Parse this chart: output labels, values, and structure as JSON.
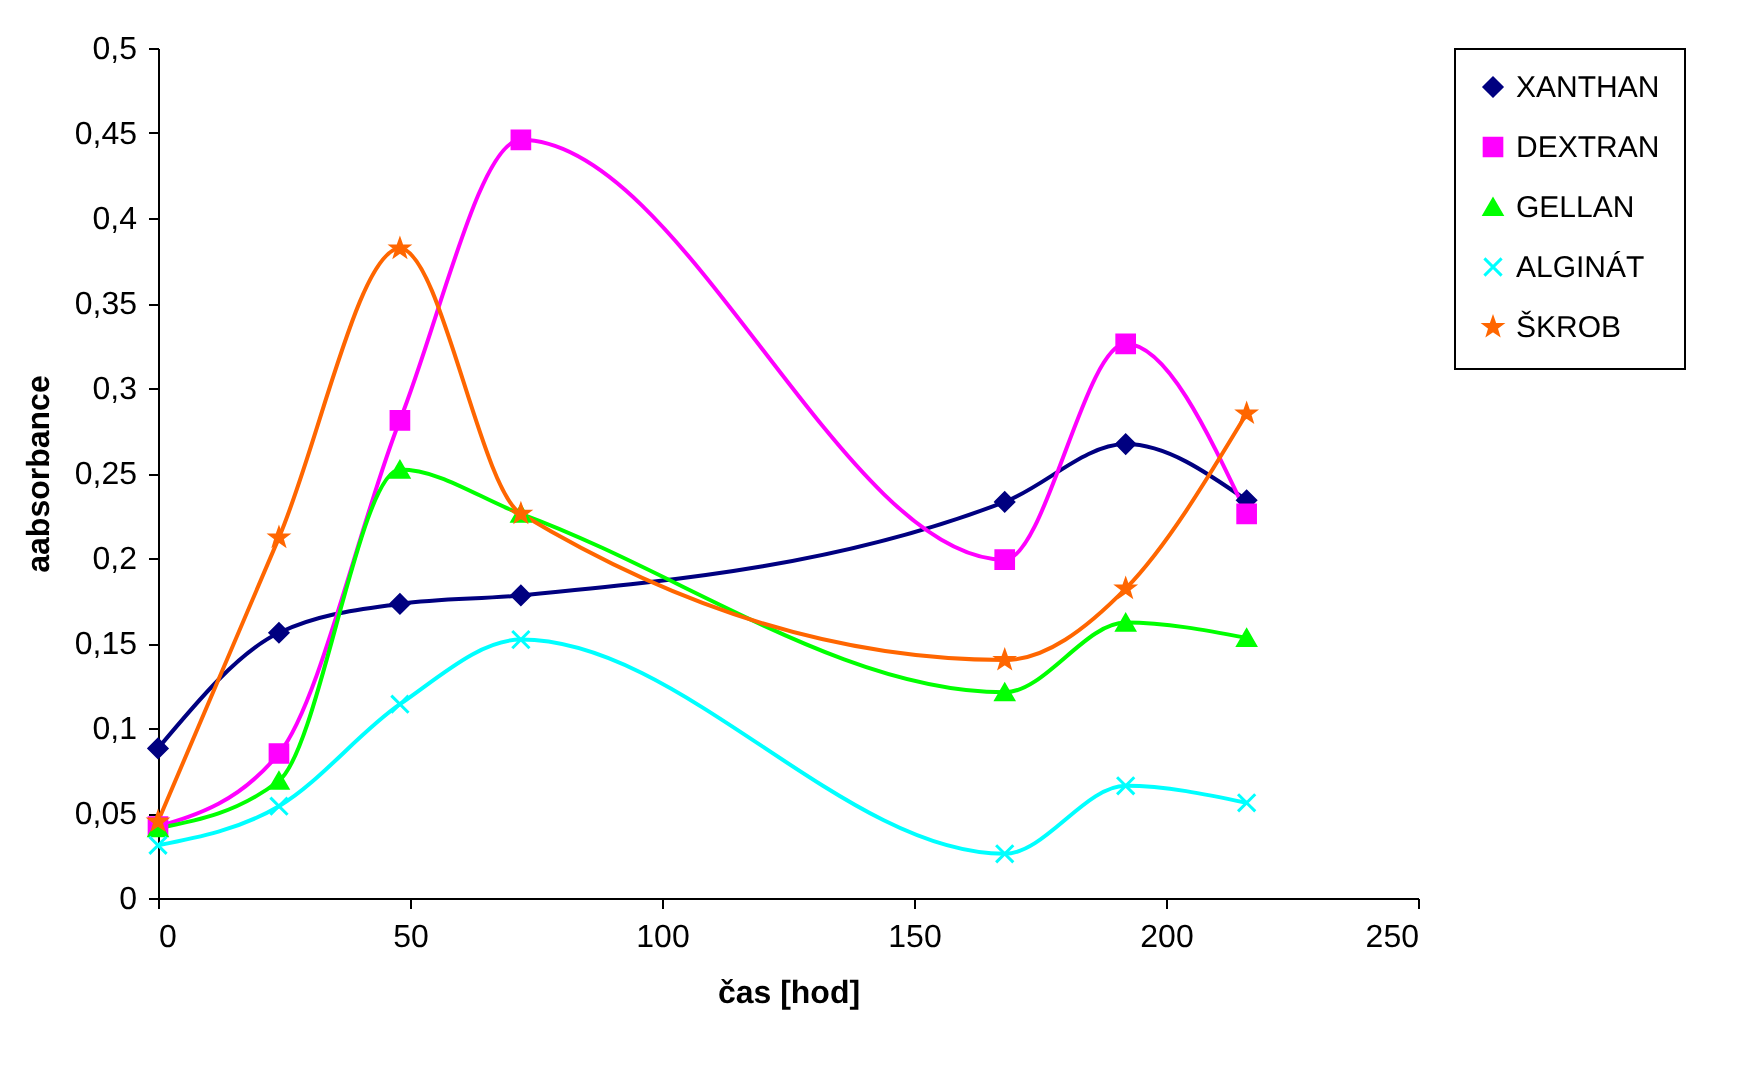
{
  "chart_data": {
    "type": "line",
    "xlabel": "čas [hod]",
    "ylabel": "aabsorbance",
    "x": [
      0,
      24,
      48,
      72,
      168,
      192,
      216
    ],
    "series": [
      {
        "name": "XANTHAN",
        "color": "#000080",
        "marker": "diamond",
        "values": [
          0.088,
          0.156,
          0.173,
          0.178,
          0.233,
          0.267,
          0.234
        ]
      },
      {
        "name": "DEXTRAN",
        "color": "#ff00ff",
        "marker": "square",
        "values": [
          0.042,
          0.085,
          0.281,
          0.446,
          0.199,
          0.326,
          0.226
        ]
      },
      {
        "name": "GELLAN",
        "color": "#00ff00",
        "marker": "triangle",
        "values": [
          0.041,
          0.069,
          0.252,
          0.226,
          0.121,
          0.162,
          0.153
        ]
      },
      {
        "name": "ALGINÁT",
        "color": "#00ffff",
        "marker": "cross",
        "values": [
          0.031,
          0.054,
          0.114,
          0.152,
          0.026,
          0.066,
          0.056
        ]
      },
      {
        "name": "ŠKROB",
        "color": "#ff6600",
        "marker": "star",
        "values": [
          0.045,
          0.212,
          0.382,
          0.226,
          0.14,
          0.182,
          0.285
        ]
      }
    ],
    "xlim": [
      0,
      250
    ],
    "xticks": [
      0,
      50,
      100,
      150,
      200,
      250
    ],
    "ylim": [
      0,
      0.5
    ],
    "yticks": [
      0,
      {
        "value": 0.05,
        "label": "0,05"
      },
      {
        "value": 0.1,
        "label": "0,1"
      },
      {
        "value": 0.15,
        "label": "0,15"
      },
      {
        "value": 0.2,
        "label": "0,2"
      },
      {
        "value": 0.25,
        "label": "0,25"
      },
      {
        "value": 0.3,
        "label": "0,3"
      },
      {
        "value": 0.35,
        "label": "0,35"
      },
      {
        "value": 0.4,
        "label": "0,4"
      },
      {
        "value": 0.45,
        "label": "0,45"
      },
      {
        "value": 0.5,
        "label": "0,5"
      }
    ],
    "grid": false,
    "legend": "right",
    "line_style": "solid"
  }
}
